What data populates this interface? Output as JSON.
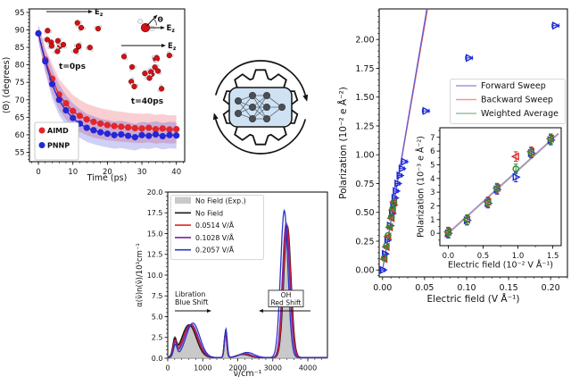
{
  "figure": {
    "background": "#ffffff"
  },
  "chart_data": [
    {
      "id": "theta_relaxation",
      "type": "line",
      "xlabel": "Time (ps)",
      "ylabel": "⟨Θ⟩ (degrees)",
      "xlim": [
        -2.6,
        42.4
      ],
      "ylim": [
        52.3,
        96
      ],
      "xticks": [
        0,
        10,
        20,
        30,
        40
      ],
      "yticks": [
        55,
        60,
        65,
        70,
        75,
        80,
        85,
        90,
        95
      ],
      "legend": [
        "AIMD",
        "PNNP"
      ],
      "series": [
        {
          "name": "AIMD",
          "color": "#e2262c",
          "x": [
            0,
            2,
            4,
            6,
            8,
            10,
            12,
            14,
            16,
            18,
            20,
            22,
            24,
            26,
            28,
            30,
            32,
            34,
            36,
            38,
            40
          ],
          "y": [
            89,
            81.5,
            76,
            71.5,
            69,
            66.8,
            65.4,
            64.4,
            63.7,
            63.2,
            62.8,
            62.5,
            62.3,
            62.1,
            61.9,
            61.8,
            62.0,
            61.6,
            61.8,
            61.5,
            61.6
          ],
          "band": [
            2.5,
            3.5,
            4.3,
            4.5,
            4.6,
            4.6,
            4.6,
            4.5,
            4.5,
            4.4,
            4.4,
            4.3,
            4.3,
            4.2,
            4.2,
            4.2,
            4.1,
            4.1,
            4.1,
            4.0,
            4.0
          ]
        },
        {
          "name": "PNNP",
          "color": "#2427d6",
          "x": [
            0,
            2,
            4,
            6,
            8,
            10,
            12,
            14,
            16,
            18,
            20,
            22,
            24,
            26,
            28,
            30,
            32,
            34,
            36,
            38,
            40
          ],
          "y": [
            89,
            81,
            74.5,
            70,
            67,
            64.8,
            63.2,
            62.0,
            61.3,
            60.7,
            60.3,
            59.9,
            60.1,
            59.7,
            59.3,
            59.9,
            59.7,
            60.1,
            59.6,
            59.9,
            59.8
          ],
          "band": [
            2.2,
            3.2,
            4.2,
            4.4,
            4.3,
            4.2,
            4.1,
            4.0,
            4.0,
            3.9,
            3.9,
            3.9,
            3.9,
            3.9,
            3.8,
            3.8,
            3.8,
            3.8,
            3.8,
            3.8,
            3.8
          ]
        }
      ],
      "annotations": {
        "t0_label": "t=0ps",
        "t40_label": "t=40ps",
        "field_label": "Ez",
        "angle_label": "Θ"
      }
    },
    {
      "id": "ir_spectrum",
      "type": "line",
      "xlabel": "ν̃/cm⁻¹",
      "ylabel": "α(ν̃)n(ν̃)/10³cm⁻¹",
      "xlim": [
        0,
        4560
      ],
      "ylim": [
        0,
        20
      ],
      "xticks": [
        0,
        1000,
        2000,
        3000,
        4000
      ],
      "yticks": [
        0,
        2.5,
        5,
        7.5,
        10,
        12.5,
        15,
        17.5,
        20
      ],
      "ytick_labels": [
        "0.0",
        "2.5",
        "5.0",
        "7.5",
        "10.0",
        "12.5",
        "15.0",
        "17.5",
        "20.0"
      ],
      "legend": [
        {
          "label": "No Field (Exp.)",
          "swatch": "patch",
          "color": "#c9c9c9"
        },
        {
          "label": "No Field",
          "swatch": "line",
          "color": "#1a1a1a"
        },
        {
          "label": "0.0514 V/Å",
          "swatch": "line",
          "color": "#e02428"
        },
        {
          "label": "0.1028 V/Å",
          "swatch": "line",
          "color": "#7d1fa2"
        },
        {
          "label": "0.2057 V/Å",
          "swatch": "line",
          "color": "#2a35c8"
        }
      ],
      "series": [
        {
          "name": "No Field (Exp.)",
          "style": "fill",
          "color": "#c9c9c9",
          "edge": "#9b9b9b",
          "baseline": 0.08,
          "peaks": [
            [
              195,
              1.9,
              75
            ],
            [
              600,
              3.95,
              300
            ],
            [
              1648,
              3.05,
              52
            ],
            [
              2150,
              0.42,
              260
            ],
            [
              3398,
              16.25,
              150
            ]
          ]
        },
        {
          "name": "No Field",
          "style": "line",
          "color": "#1a1a1a",
          "baseline": 0.07,
          "peaks": [
            [
              198,
              1.85,
              72
            ],
            [
              610,
              3.95,
              290
            ],
            [
              1650,
              3.0,
              52
            ],
            [
              2155,
              0.4,
              250
            ],
            [
              3415,
              15.85,
              148
            ]
          ]
        },
        {
          "name": "0.0514 V/Å",
          "style": "line",
          "color": "#e02428",
          "baseline": 0.07,
          "peaks": [
            [
              203,
              1.7,
              72
            ],
            [
              645,
              3.95,
              290
            ],
            [
              1650,
              3.05,
              52
            ],
            [
              2180,
              0.45,
              250
            ],
            [
              3402,
              15.95,
              148
            ]
          ]
        },
        {
          "name": "0.1028 V/Å",
          "style": "line",
          "color": "#7d1fa2",
          "baseline": 0.07,
          "peaks": [
            [
              208,
              1.6,
              72
            ],
            [
              672,
              4.0,
              285
            ],
            [
              1655,
              3.1,
              52
            ],
            [
              2205,
              0.5,
              255
            ],
            [
              3378,
              16.1,
              148
            ]
          ]
        },
        {
          "name": "0.2057 V/Å",
          "style": "line",
          "color": "#2a35c8",
          "baseline": 0.07,
          "peaks": [
            [
              215,
              1.45,
              72
            ],
            [
              718,
              4.15,
              278
            ],
            [
              1660,
              3.45,
              54
            ],
            [
              2265,
              0.62,
              280
            ],
            [
              3328,
              17.7,
              150
            ]
          ]
        }
      ],
      "annotations": [
        {
          "lines": [
            "Libration",
            "Blue Shift"
          ],
          "boxed": false,
          "arrow": "right"
        },
        {
          "lines": [
            "OH",
            "Red Shift"
          ],
          "boxed": true,
          "arrow": "left"
        }
      ]
    },
    {
      "id": "polarization_hysteresis",
      "type": "scatter",
      "xlabel": "Electric field (V Å⁻¹)",
      "ylabel": "Polarization (10⁻² e Å⁻²)",
      "xlim": [
        -0.004,
        0.22
      ],
      "ylim": [
        -0.06,
        2.265
      ],
      "xticks": [
        0,
        0.05,
        0.1,
        0.15,
        0.2
      ],
      "xtick_labels": [
        "0.00",
        "0.05",
        "0.10",
        "0.15",
        "0.20"
      ],
      "yticks": [
        0,
        0.25,
        0.5,
        0.75,
        1,
        1.25,
        1.5,
        1.75,
        2
      ],
      "ytick_labels": [
        "0.00",
        "0.25",
        "0.50",
        "0.75",
        "1.00",
        "1.25",
        "1.50",
        "1.75",
        "2.00"
      ],
      "legend": [
        "Forward Sweep",
        "Backward Sweep",
        "Weighted Average"
      ],
      "legend_colors": [
        "#9898ec",
        "#ec9898",
        "#96c4a0"
      ],
      "fit_lines": [
        {
          "name": "Backward Sweep",
          "color": "#e05555",
          "slope": 42.3
        },
        {
          "name": "Forward Sweep",
          "color": "#5c5ce0",
          "slope": 43.0
        }
      ],
      "series": [
        {
          "name": "Forward Sweep",
          "marker": "triangle-right",
          "color": "#1c2bdc",
          "points": [
            [
              0.0005,
              0.0,
              0.002
            ],
            [
              0.003,
              0.14,
              0.002
            ],
            [
              0.006,
              0.26,
              0.002
            ],
            [
              0.009,
              0.385,
              0.002
            ],
            [
              0.0115,
              0.49,
              0.002
            ],
            [
              0.013,
              0.565,
              0.002
            ],
            [
              0.0145,
              0.625,
              0.002
            ],
            [
              0.016,
              0.685,
              0.0025
            ],
            [
              0.018,
              0.75,
              0.0025
            ],
            [
              0.0205,
              0.82,
              0.0025
            ],
            [
              0.023,
              0.88,
              0.003
            ],
            [
              0.026,
              0.94,
              0.003
            ],
            [
              0.0514,
              1.38,
              0.004
            ],
            [
              0.1028,
              1.84,
              0.004
            ],
            [
              0.2057,
              2.12,
              0.004
            ]
          ]
        },
        {
          "name": "Backward Sweep",
          "marker": "triangle-left",
          "color": "#d62728",
          "points": [
            [
              0.002,
              0.095,
              0.0015
            ],
            [
              0.0045,
              0.2,
              0.0015
            ],
            [
              0.0065,
              0.29,
              0.0015
            ],
            [
              0.0085,
              0.37,
              0.0015
            ],
            [
              0.0105,
              0.45,
              0.0015
            ],
            [
              0.012,
              0.52,
              0.0015
            ],
            [
              0.0135,
              0.585,
              0.0015
            ]
          ]
        },
        {
          "name": "Weighted Average",
          "marker": "circle",
          "color": "#2d8c2d",
          "points": [
            [
              0.002,
              0.105,
              0.001
            ],
            [
              0.0045,
              0.21,
              0.001
            ],
            [
              0.0065,
              0.3,
              0.001
            ],
            [
              0.0085,
              0.38,
              0.001
            ],
            [
              0.0105,
              0.46,
              0.001
            ],
            [
              0.012,
              0.53,
              0.001
            ],
            [
              0.0135,
              0.59,
              0.001
            ]
          ]
        }
      ],
      "inset": {
        "xlabel": "Electric field (10⁻² V Å⁻¹)",
        "ylabel": "Polarization (10⁻³ e Å⁻²)",
        "xlim": [
          -0.12,
          1.62
        ],
        "ylim": [
          -0.9,
          7.7
        ],
        "xticks": [
          0,
          0.5,
          1,
          1.5
        ],
        "xtick_labels": [
          "0.0",
          "0.5",
          "1.0",
          "1.5"
        ],
        "yticks": [
          0,
          1,
          2,
          3,
          4,
          5,
          6,
          7
        ],
        "fit_slope": 4.6,
        "x": [
          0,
          0.27,
          0.57,
          0.7,
          0.97,
          1.19,
          1.47
        ],
        "series": [
          {
            "name": "Forward Sweep",
            "marker": "triangle-right",
            "color": "#1c2bdc",
            "y": [
              0,
              0.95,
              2.2,
              3.2,
              4.1,
              5.85,
              6.8
            ]
          },
          {
            "name": "Backward Sweep",
            "marker": "triangle-left",
            "color": "#d62728",
            "y": [
              0.1,
              1.0,
              2.3,
              3.3,
              5.6,
              5.95,
              6.9
            ]
          },
          {
            "name": "Weighted Average",
            "marker": "circle",
            "color": "#2d8c2d",
            "y": [
              0.05,
              1.0,
              2.25,
              3.25,
              4.7,
              5.9,
              6.85
            ]
          }
        ]
      }
    }
  ],
  "icons": {
    "ml_gear": {
      "meaning": "machine-learning-cycle",
      "body": "#ffffff",
      "screen": "#cfe2f4",
      "outline": "#141414",
      "node_color": "#4a4f55",
      "edge_color": "#5a6b7a"
    }
  },
  "molecule_colors": {
    "oxygen": "#cf1318",
    "oxygen_edge": "#6b0608",
    "hydrogen": "#f2f2f2",
    "hydrogen_edge": "#999999"
  }
}
